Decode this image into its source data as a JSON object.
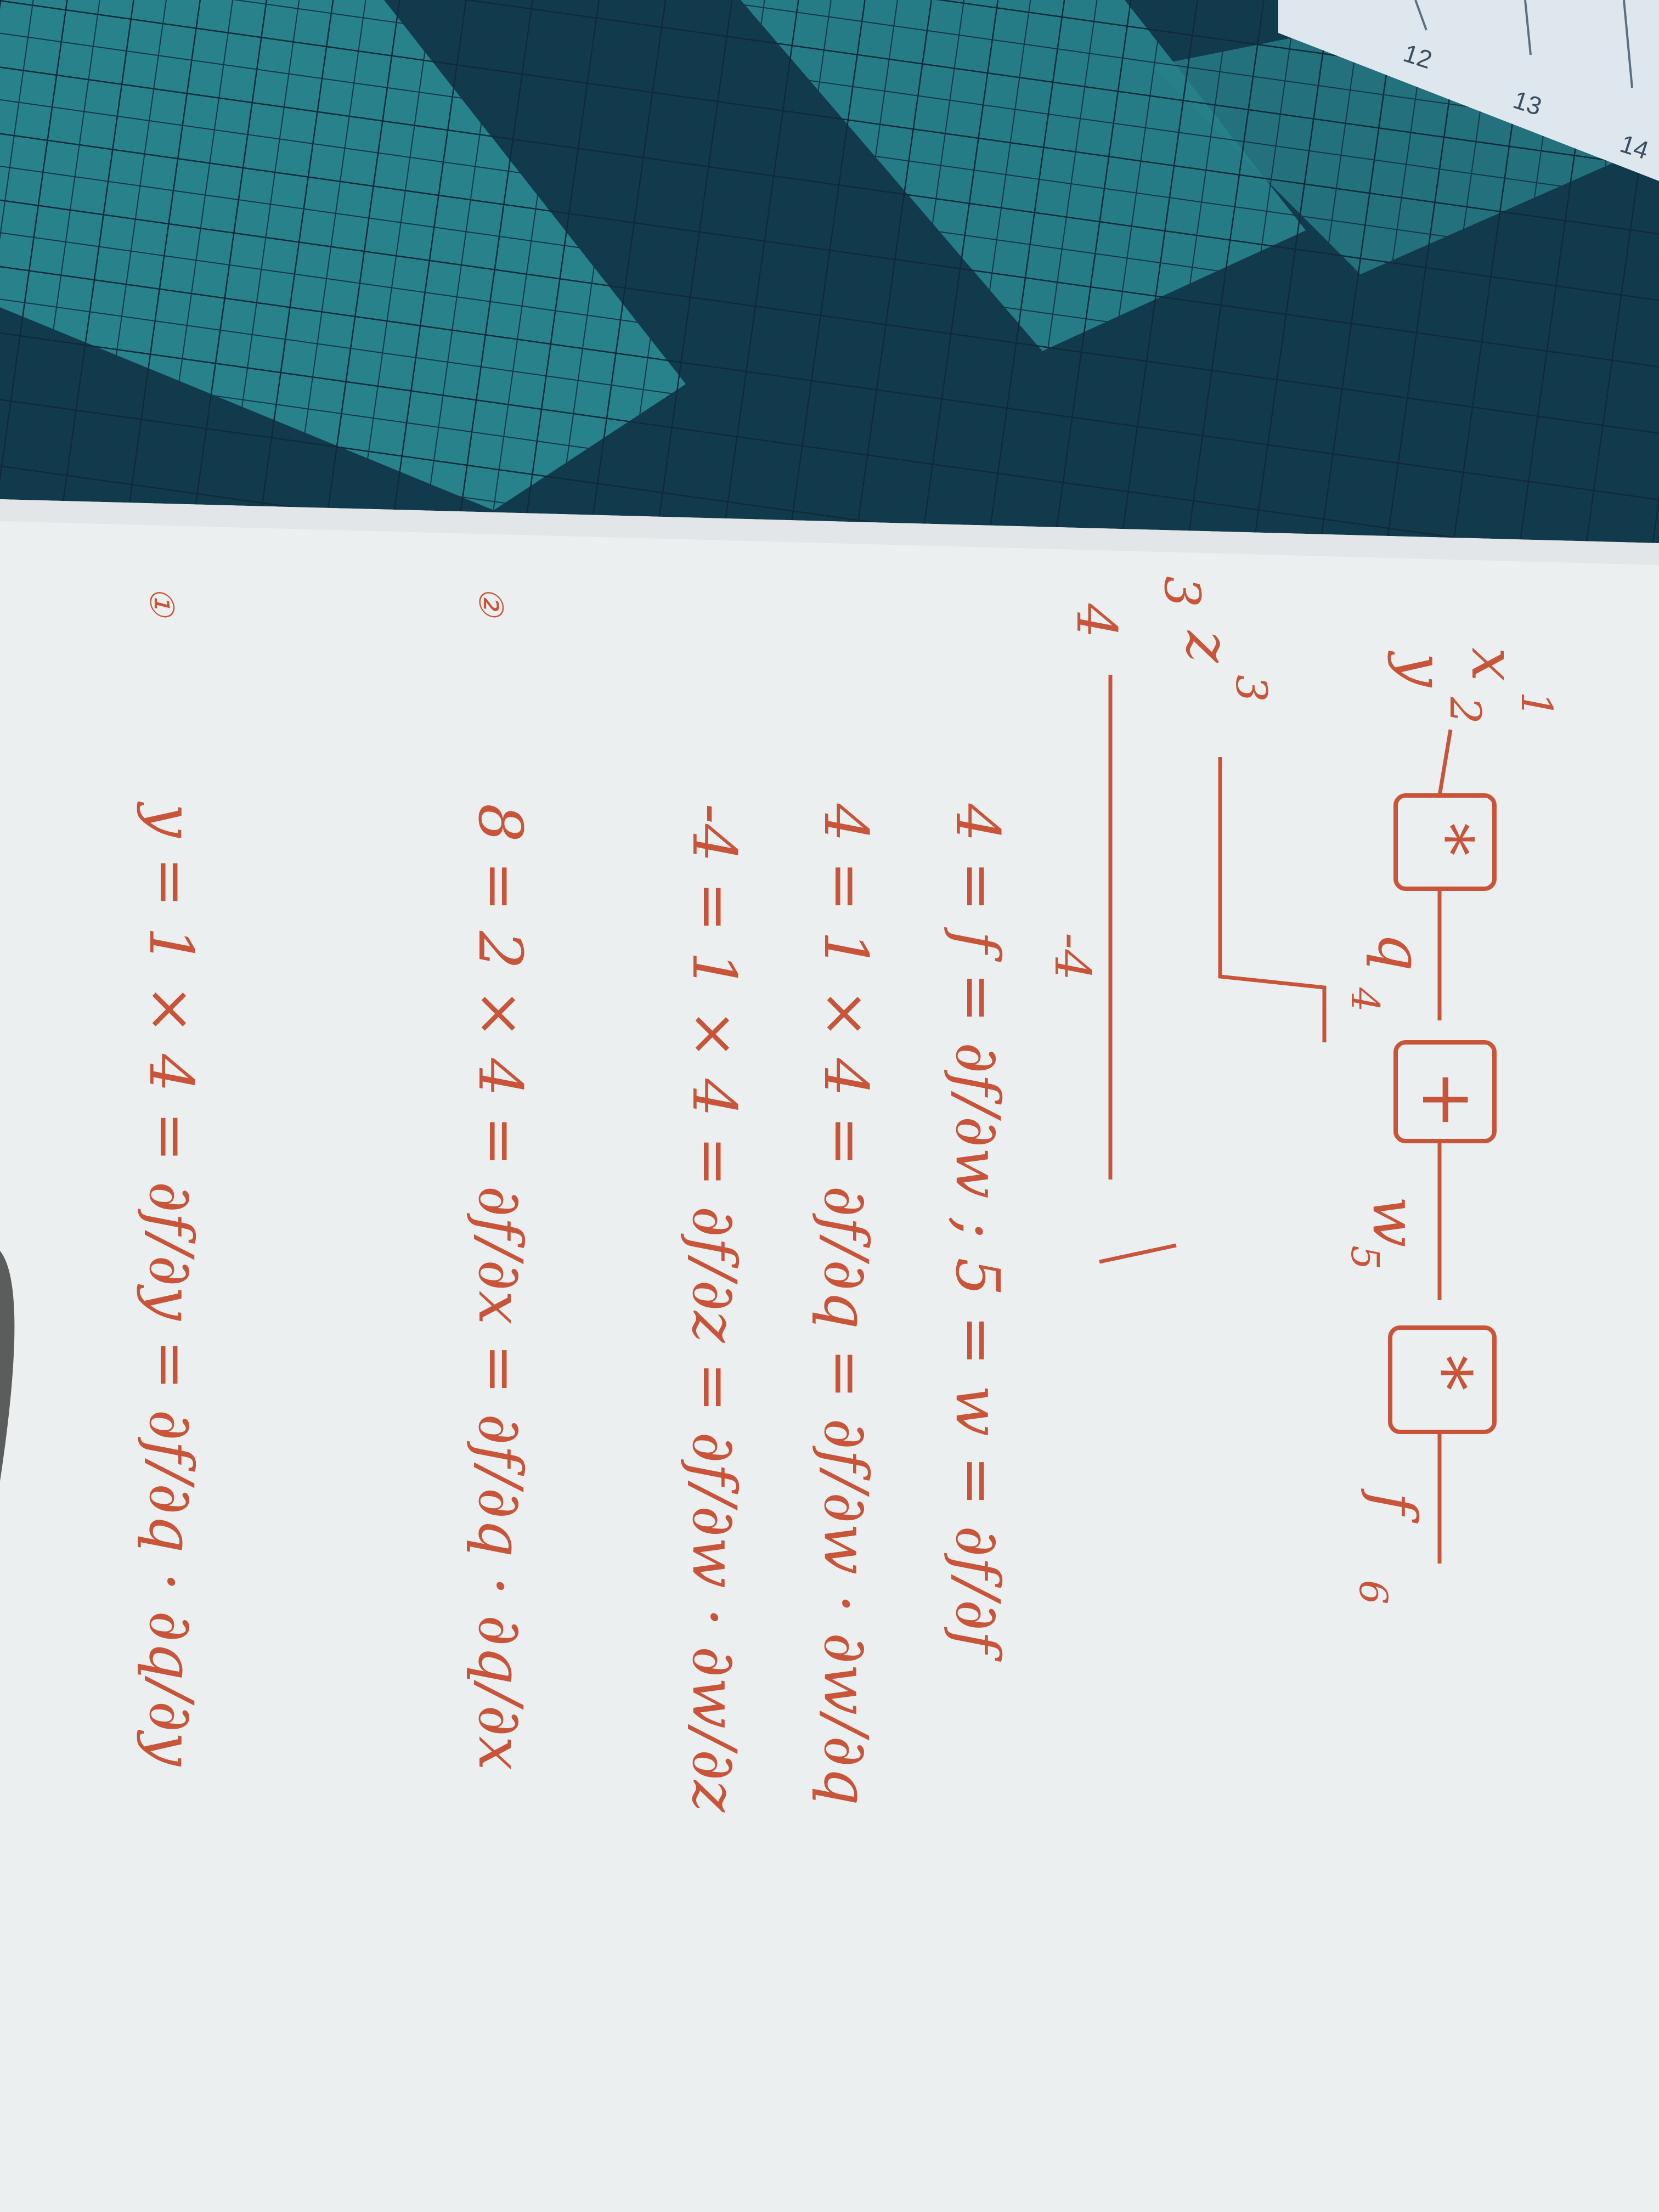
{
  "colors": {
    "mat_dark": "#123a4d",
    "mat_light": "#2d8c94",
    "mat_grid": "#0f2a3a",
    "paper": "#eceff0",
    "ink": "#c8553a",
    "ruler": "#dfe7ee"
  },
  "ruler": {
    "ticks": [
      "12",
      "13",
      "14"
    ]
  },
  "diagram": {
    "inputs": {
      "x": "x",
      "x_sup": "1",
      "y": "y",
      "y_sup": "2",
      "z": "z",
      "z_sup": "3"
    },
    "op_multiply_1": "*",
    "node_q": "q",
    "node_q_sup": "4",
    "op_add": "+",
    "node_w": "w",
    "node_w_sup": "5",
    "op_multiply_2": "*",
    "node_f": "f",
    "node_f_sup": "6",
    "grad_out": "4",
    "grad_q": "-4",
    "grad_z": "3"
  },
  "equations": {
    "row1": {
      "marker": "①",
      "lhs": "y = 1 × 4 = ",
      "parts": "∂f/∂y = ∂f/∂q · ∂q/∂y"
    },
    "row2": {
      "marker": "②",
      "lhs": "8 = 2 × 4 = ",
      "parts": "∂f/∂x = ∂f/∂q · ∂q/∂x"
    },
    "row3": {
      "lhs": "-4 = 1 × 4 = ",
      "parts": "∂f/∂z = ∂f/∂w · ∂w/∂z"
    },
    "row4": {
      "lhs": "4 = 1 × 4 = ",
      "parts": "∂f/∂q = ∂f/∂w · ∂w/∂q"
    },
    "row5": {
      "lhs": "4 = f = ",
      "parts": "∂f/∂w ; 5 = w = ∂f/∂f"
    }
  }
}
